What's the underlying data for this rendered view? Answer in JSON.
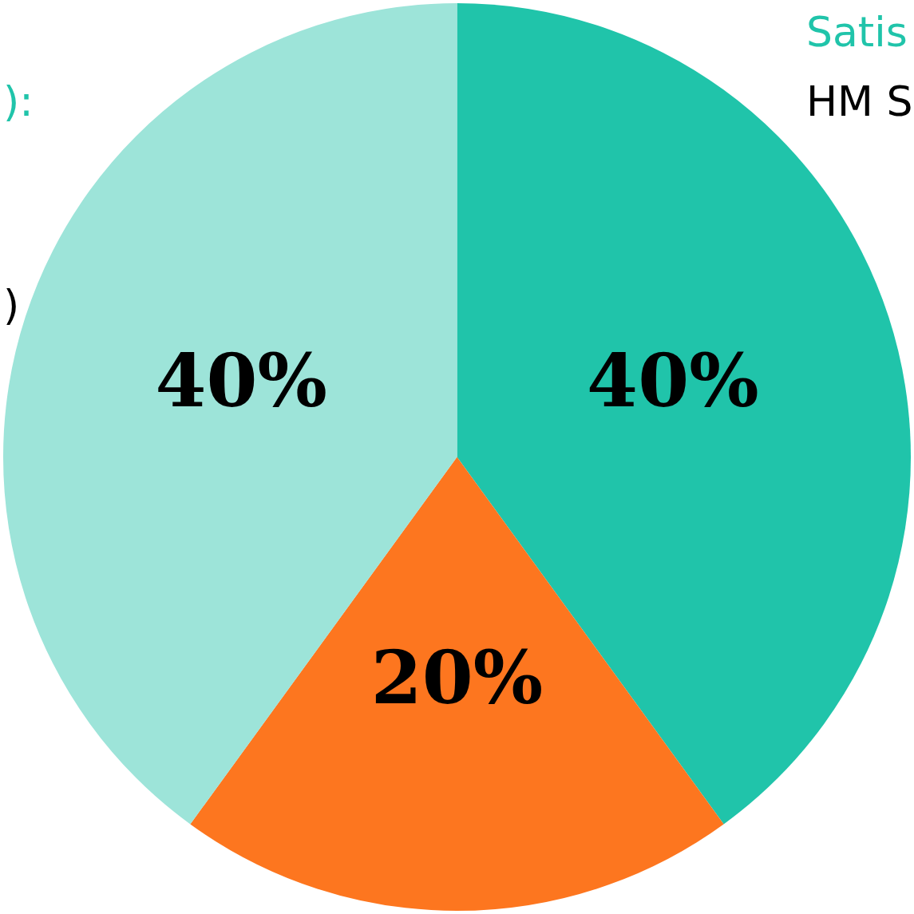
{
  "chart_data": {
    "type": "pie",
    "categories": [
      null,
      null,
      null
    ],
    "values": [
      40,
      20,
      40
    ],
    "colors": [
      "#20c4aa",
      "#fd761f",
      "#9de4d9"
    ],
    "value_labels": [
      "40%",
      "20%",
      "40%"
    ],
    "annotations": [
      "Satis",
      "HM S",
      "):",
      ")"
    ]
  }
}
